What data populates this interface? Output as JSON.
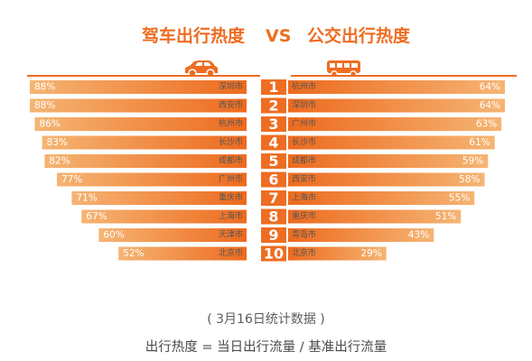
{
  "titles": {
    "left": "驾车出行热度",
    "vs": "VS",
    "right": "公交出行热度"
  },
  "icons": {
    "left": "car-icon",
    "right": "bus-icon"
  },
  "colors": {
    "accent": "#ee6d22",
    "bar_light": "#f5b574",
    "bar_dark": "#ed6a1e",
    "rank_box": "#ee6d22"
  },
  "footnotes": {
    "date": "( 3月16日统计数据 )",
    "formula": "出行热度 = 当日出行流量 / 基准出行流量"
  },
  "chart_data": [
    {
      "type": "bar",
      "orientation": "horizontal",
      "direction": "right-to-left",
      "ranks": [
        "1",
        "2",
        "3",
        "4",
        "5",
        "6",
        "7",
        "8",
        "9",
        "10"
      ],
      "categories": [
        "深圳市",
        "西安市",
        "杭州市",
        "长沙市",
        "成都市",
        "广州市",
        "重庆市",
        "上海市",
        "天津市",
        "北京市"
      ],
      "values": [
        88,
        88,
        86,
        83,
        82,
        77,
        71,
        67,
        60,
        52
      ],
      "value_labels": [
        "88%",
        "88%",
        "86%",
        "83%",
        "82%",
        "77%",
        "71%",
        "67%",
        "60%",
        "52%"
      ],
      "unit": "%",
      "xlim": [
        0,
        100
      ],
      "grid": false,
      "legend": "none"
    },
    {
      "type": "bar",
      "orientation": "horizontal",
      "direction": "left-to-right",
      "ranks": [
        "1",
        "2",
        "3",
        "4",
        "5",
        "6",
        "7",
        "8",
        "9",
        "10"
      ],
      "categories": [
        "杭州市",
        "深圳市",
        "广州市",
        "长沙市",
        "成都市",
        "西安市",
        "上海市",
        "重庆市",
        "青岛市",
        "北京市"
      ],
      "values": [
        64,
        64,
        63,
        61,
        59,
        58,
        55,
        51,
        43,
        29
      ],
      "value_labels": [
        "64%",
        "64%",
        "63%",
        "61%",
        "59%",
        "58%",
        "55%",
        "51%",
        "43%",
        "29%"
      ],
      "unit": "%",
      "xlim": [
        0,
        70
      ],
      "grid": false,
      "legend": "none"
    }
  ]
}
